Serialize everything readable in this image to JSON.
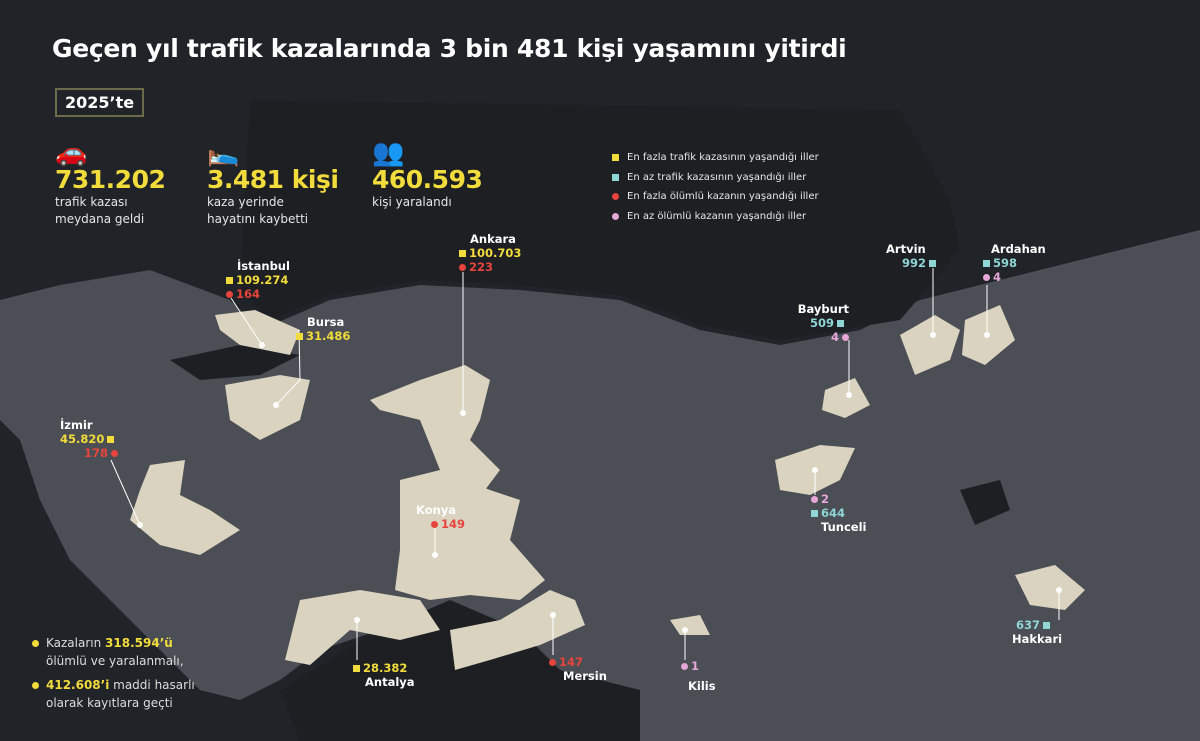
{
  "title": "Geçen yıl trafik kazalarında 3 bin 481 kişi yaşamını yitirdi",
  "year_badge": "2025’te",
  "stats": [
    {
      "icon": "car-crash-icon",
      "value": "731.202",
      "line1": "trafik kazası",
      "line2": "meydana geldi"
    },
    {
      "icon": "lying-person-icon",
      "value": "3.481 kişi",
      "line1": "kaza yerinde",
      "line2": "hayatını kaybetti"
    },
    {
      "icon": "injured-people-icon",
      "value": "460.593",
      "line1": "kişi yaralandı",
      "line2": ""
    }
  ],
  "legend": [
    {
      "label": "En fazla trafik kazasının yaşandığı iller",
      "color": "#f2dc3c",
      "marker": "square"
    },
    {
      "label": "En az trafik kazasının yaşandığı iller",
      "color": "#8fd6d6",
      "marker": "square"
    },
    {
      "label": "En fazla ölümlü kazanın yaşandığı iller",
      "color": "#e8443e",
      "marker": "circle"
    },
    {
      "label": "En az ölümlü kazanın yaşandığı iller",
      "color": "#e6a8d8",
      "marker": "circle"
    }
  ],
  "provinces": {
    "istanbul": {
      "name": "İstanbul",
      "accidents": "109.274",
      "deaths": "164"
    },
    "bursa": {
      "name": "Bursa",
      "accidents": "31.486"
    },
    "ankara": {
      "name": "Ankara",
      "accidents": "100.703",
      "deaths": "223"
    },
    "izmir": {
      "name": "İzmir",
      "accidents": "45.820",
      "deaths": "178"
    },
    "konya": {
      "name": "Konya",
      "deaths": "149"
    },
    "antalya": {
      "name": "Antalya",
      "accidents": "28.382"
    },
    "mersin": {
      "name": "Mersin",
      "deaths": "147"
    },
    "kilis": {
      "name": "Kilis",
      "deaths": "1"
    },
    "artvin": {
      "name": "Artvin",
      "accidents": "992"
    },
    "ardahan": {
      "name": "Ardahan",
      "accidents": "598",
      "deaths": "4"
    },
    "bayburt": {
      "name": "Bayburt",
      "accidents": "509",
      "deaths": "4"
    },
    "tunceli": {
      "name": "Tunceli",
      "accidents": "644",
      "deaths": "2"
    },
    "hakkari": {
      "name": "Hakkari",
      "accidents": "637"
    }
  },
  "notes": [
    {
      "pre": "Kazaların ",
      "bold": "318.594’ü",
      "post": " ölümlü ve yaralanmalı,"
    },
    {
      "pre": "",
      "bold": "412.608’i",
      "post": " maddi hasarlı olarak kayıtlara geçti"
    }
  ]
}
